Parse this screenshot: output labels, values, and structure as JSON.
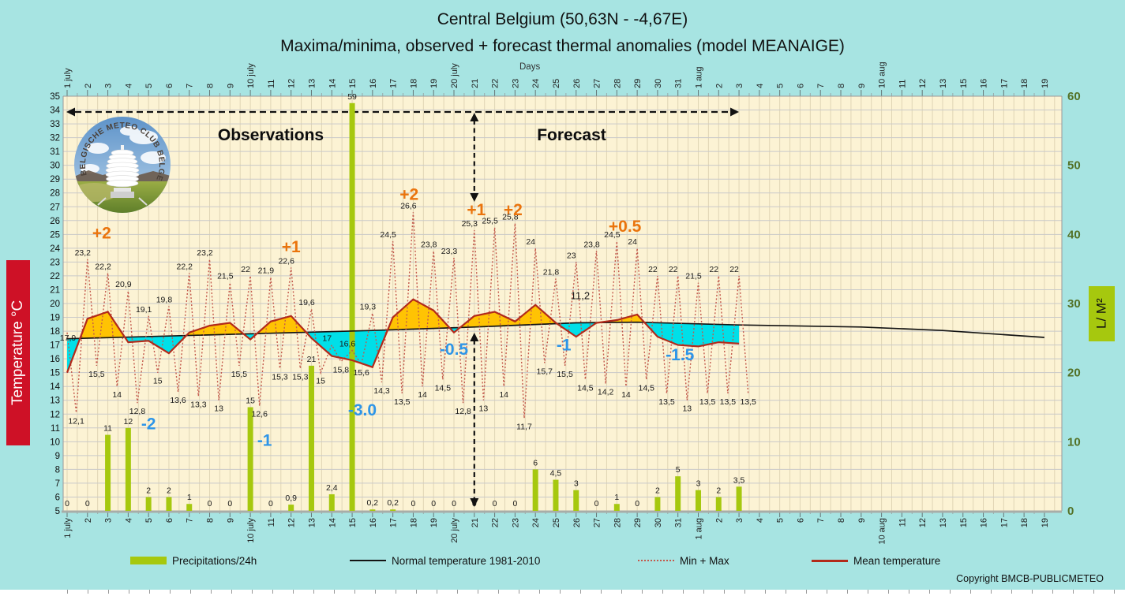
{
  "title": "Central Belgium (50,63N - -4,67E)",
  "subtitle": "Maxima/minima, observed + forecast thermal anomalies (model MEANAIGE)",
  "axis_top_label": "Days",
  "sections": {
    "observations": "Observations",
    "forecast": "Forecast"
  },
  "left_axis": {
    "label": "Temperature °C",
    "min": 5,
    "max": 35,
    "step": 1
  },
  "right_axis": {
    "label": "L/ M²",
    "min": 0,
    "max": 60,
    "ticks": [
      60,
      50,
      40,
      30,
      20,
      10,
      0
    ]
  },
  "legend": [
    {
      "swatch": "bar",
      "label": "Precipitations/24h"
    },
    {
      "swatch": "line-black",
      "label": "Normal temperature 1981-2010"
    },
    {
      "swatch": "line-dot",
      "label": "Min + Max"
    },
    {
      "swatch": "line-red",
      "label": "Mean temperature"
    }
  ],
  "copyright": "Copyright BMCB-PUBLICMETEO",
  "logo_text": "BELGISCHE METEO CLUB BELGE",
  "colors": {
    "bg": "#A7E4E2",
    "plot": "#FCF3D4",
    "bar": "#A6C80E",
    "cyanfill": "#00DFE8",
    "yellowfill": "#FFC303",
    "meanline": "#B22A1B",
    "dotline": "#C3584B",
    "normline": "#141414",
    "orange": "#EA740D",
    "blue": "#2D95E8",
    "redbox": "#CE1126",
    "greentext": "#537126",
    "hgrid": "#C9C9C9",
    "vgrid": "#E0D5B5"
  },
  "chart_data": {
    "type": "combo-bar-line",
    "ylim_temp": [
      5,
      35
    ],
    "ylim_precip": [
      0,
      60
    ],
    "grid": true,
    "day_labels": [
      "1 july",
      "2",
      "3",
      "4",
      "5",
      "6",
      "7",
      "8",
      "9",
      "10 july",
      "11",
      "12",
      "13",
      "14",
      "15",
      "16",
      "17",
      "18",
      "19",
      "20 july",
      "21",
      "22",
      "23",
      "24",
      "25",
      "26",
      "27",
      "28",
      "29",
      "30",
      "31",
      "1 aug",
      "2",
      "3",
      "4",
      "5",
      "6",
      "7",
      "8",
      "9",
      "10 aug",
      "11",
      "12",
      "13",
      "15",
      "16",
      "17",
      "18",
      "19"
    ],
    "days_with_data": 34,
    "forecast_boundary_day": 21,
    "series_end_day": 34,
    "max": [
      17.9,
      23.2,
      22.2,
      20.9,
      19.1,
      19.8,
      22.2,
      23.2,
      21.5,
      22,
      21.9,
      22.6,
      19.6,
      17,
      16.6,
      19.3,
      24.5,
      26.6,
      23.8,
      23.3,
      25.3,
      25.5,
      25.8,
      24,
      21.8,
      23,
      23.8,
      24.5,
      24,
      22,
      22,
      21.5,
      22,
      22
    ],
    "min": [
      12.1,
      15.5,
      14,
      12.8,
      15,
      13.6,
      13.3,
      13,
      15.5,
      12.6,
      15.3,
      15.3,
      15,
      15.8,
      15.6,
      14.3,
      13.5,
      14,
      14.5,
      12.8,
      13,
      14,
      11.7,
      15.7,
      15.5,
      14.5,
      14.2,
      14,
      14.5,
      13.5,
      13,
      13.5,
      13.5,
      13.5
    ],
    "mean": [
      15.0,
      18.9,
      19.4,
      17.2,
      17.3,
      16.4,
      17.9,
      18.4,
      18.6,
      17.4,
      18.7,
      19.1,
      17.5,
      16.2,
      15.9,
      15.4,
      19.0,
      20.3,
      19.5,
      17.9,
      19.1,
      19.4,
      18.7,
      19.9,
      18.6,
      17.6,
      18.6,
      18.8,
      19.2,
      17.6,
      17.0,
      16.9,
      17.2,
      17.1
    ],
    "precip": [
      0,
      0,
      11,
      12,
      2,
      2,
      1,
      0,
      0,
      15,
      0,
      0.9,
      21,
      2.4,
      59,
      0.2,
      0.2,
      0,
      0,
      0,
      0,
      0,
      0,
      6,
      4.5,
      3,
      0,
      1,
      0,
      2,
      5,
      3,
      2,
      3.5
    ],
    "normal_points": [
      [
        1,
        17.45
      ],
      [
        6,
        17.65
      ],
      [
        11,
        17.85
      ],
      [
        16,
        18.05
      ],
      [
        21,
        18.3
      ],
      [
        26,
        18.6
      ],
      [
        29,
        18.65
      ],
      [
        34,
        18.45
      ],
      [
        40,
        18.3
      ],
      [
        44,
        18.05
      ],
      [
        49,
        17.55
      ]
    ],
    "anomalies": [
      {
        "text": "+2",
        "day": 2.7,
        "temp": 25.1,
        "warm": true
      },
      {
        "text": "+1",
        "day": 12.0,
        "temp": 24.1,
        "warm": true
      },
      {
        "text": "+2",
        "day": 17.8,
        "temp": 27.9,
        "warm": true
      },
      {
        "text": "+1",
        "day": 21.1,
        "temp": 26.8,
        "warm": true
      },
      {
        "text": "+2",
        "day": 22.9,
        "temp": 26.8,
        "warm": true
      },
      {
        "text": "+0.5",
        "day": 28.4,
        "temp": 25.6,
        "warm": true
      },
      {
        "text": "-2",
        "day": 5.0,
        "temp": 11.3,
        "warm": false
      },
      {
        "text": "-1",
        "day": 10.7,
        "temp": 10.1,
        "warm": false
      },
      {
        "text": "-3.0",
        "day": 15.5,
        "temp": 12.3,
        "warm": false
      },
      {
        "text": "-0.5",
        "day": 20.0,
        "temp": 16.7,
        "warm": false
      },
      {
        "text": "-1",
        "day": 25.4,
        "temp": 17.0,
        "warm": false
      },
      {
        "text": "-1.5",
        "day": 31.1,
        "temp": 16.3,
        "warm": false
      }
    ],
    "stray_label": {
      "text": "11,2",
      "day": 26.2,
      "temp": 20.6
    }
  }
}
